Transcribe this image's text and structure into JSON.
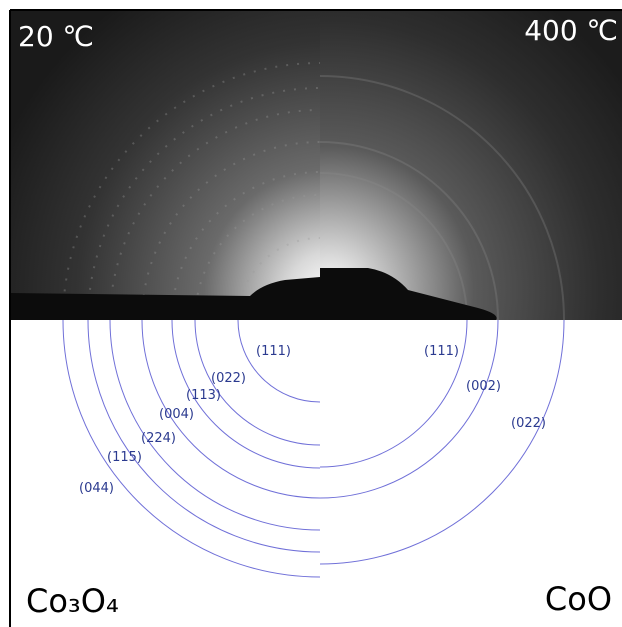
{
  "panels": {
    "left": {
      "temperature": "20 ℃",
      "phase": "Co₃O₄",
      "rings": [
        "(111)",
        "(022)",
        "(113)",
        "(004)",
        "(224)",
        "(115)",
        "(044)"
      ]
    },
    "right": {
      "temperature": "400 ℃",
      "phase": "CoO",
      "rings": [
        "(111)",
        "(002)",
        "(022)"
      ]
    }
  }
}
